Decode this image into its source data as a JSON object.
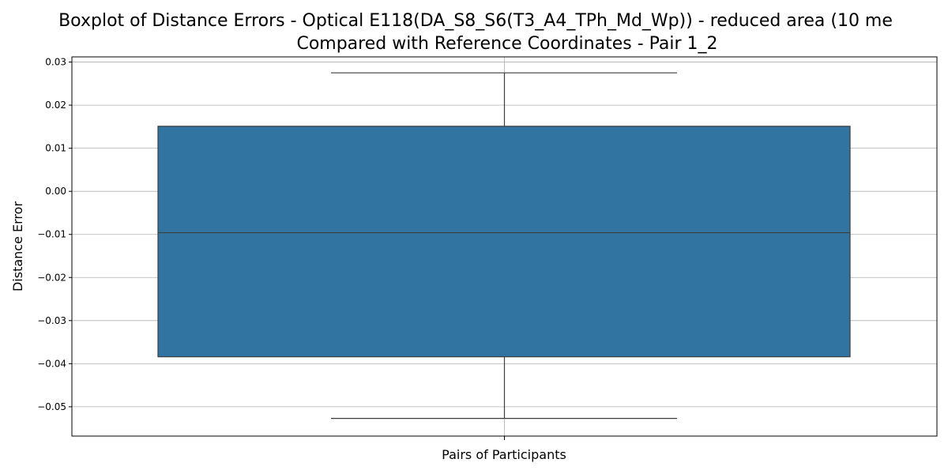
{
  "chart_data": {
    "type": "box",
    "title_line1": "Boxplot of Distance Errors - Optical E118(DA_S8_S6(T3_A4_TPh_Md_Wp)) - reduced area (10 me",
    "title_line2": "Compared with Reference Coordinates - Pair 1_2",
    "xlabel": "Pairs of Participants",
    "ylabel": "Distance Error",
    "ylim": [
      -0.0568,
      0.0312
    ],
    "yticks": [
      -0.05,
      -0.04,
      -0.03,
      -0.02,
      -0.01,
      0.0,
      0.01,
      0.02,
      0.03
    ],
    "ytick_labels": [
      "−0.05",
      "−0.04",
      "−0.03",
      "−0.02",
      "−0.01",
      "0.00",
      "0.01",
      "0.02",
      "0.03"
    ],
    "grid": true,
    "box": {
      "whisker_low": -0.0527,
      "q1": -0.0384,
      "median": -0.0096,
      "q3": 0.0151,
      "whisker_high": 0.0275
    },
    "box_color": "#3274a1",
    "line_color": "#3d3d3d",
    "grid_color": "#b0b0b0"
  }
}
